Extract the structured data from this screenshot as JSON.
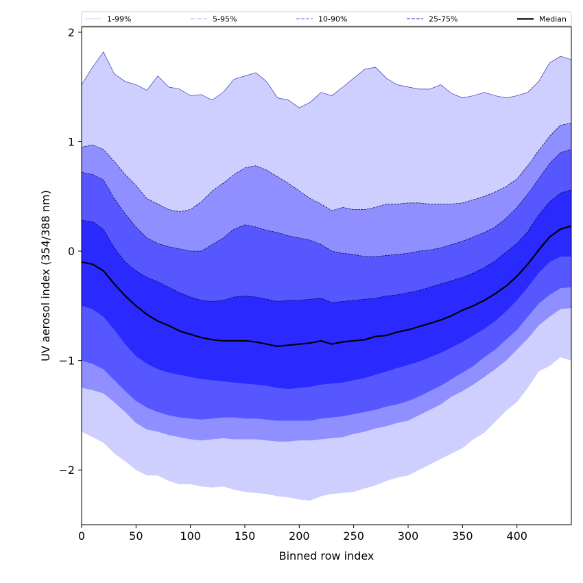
{
  "chart_data": {
    "type": "area",
    "xlabel": "Binned row index",
    "ylabel": "UV aerosol index (354/388 nm)",
    "xlim": [
      0,
      450
    ],
    "ylim": [
      -2.5,
      2.05
    ],
    "x_ticks": [
      0,
      50,
      100,
      150,
      200,
      250,
      300,
      350,
      400
    ],
    "x_tick_labels": [
      "0",
      "50",
      "100",
      "150",
      "200",
      "250",
      "300",
      "350",
      "400"
    ],
    "y_ticks": [
      -2,
      -1,
      0,
      1,
      2
    ],
    "y_tick_labels": [
      "−2",
      "−1",
      "0",
      "1",
      "2"
    ],
    "grid": false,
    "legend_position": "top",
    "x": [
      0,
      10,
      20,
      30,
      40,
      50,
      60,
      70,
      80,
      90,
      100,
      110,
      120,
      130,
      140,
      150,
      160,
      170,
      180,
      190,
      200,
      210,
      220,
      230,
      240,
      250,
      260,
      270,
      280,
      290,
      300,
      310,
      320,
      330,
      340,
      350,
      360,
      370,
      380,
      390,
      400,
      410,
      420,
      430,
      440,
      450
    ],
    "bands": [
      {
        "name": "1-99%",
        "color": "#cfcfff",
        "lower": [
          -1.65,
          -1.7,
          -1.75,
          -1.85,
          -1.92,
          -2.0,
          -2.05,
          -2.05,
          -2.1,
          -2.13,
          -2.13,
          -2.15,
          -2.16,
          -2.15,
          -2.18,
          -2.2,
          -2.21,
          -2.22,
          -2.24,
          -2.25,
          -2.27,
          -2.28,
          -2.24,
          -2.22,
          -2.21,
          -2.2,
          -2.17,
          -2.14,
          -2.1,
          -2.07,
          -2.05,
          -2.0,
          -1.95,
          -1.9,
          -1.85,
          -1.8,
          -1.72,
          -1.66,
          -1.56,
          -1.46,
          -1.38,
          -1.25,
          -1.1,
          -1.05,
          -0.97,
          -1.0
        ],
        "upper": [
          1.52,
          1.68,
          1.82,
          1.62,
          1.55,
          1.52,
          1.47,
          1.6,
          1.5,
          1.48,
          1.42,
          1.43,
          1.38,
          1.45,
          1.57,
          1.6,
          1.63,
          1.55,
          1.4,
          1.38,
          1.31,
          1.36,
          1.45,
          1.42,
          1.5,
          1.58,
          1.66,
          1.68,
          1.58,
          1.52,
          1.5,
          1.48,
          1.48,
          1.52,
          1.44,
          1.4,
          1.42,
          1.45,
          1.42,
          1.4,
          1.42,
          1.45,
          1.55,
          1.72,
          1.78,
          1.75
        ]
      },
      {
        "name": "5-95%",
        "color": "#8f8fff",
        "lower": [
          -1.25,
          -1.27,
          -1.3,
          -1.38,
          -1.47,
          -1.57,
          -1.63,
          -1.65,
          -1.68,
          -1.7,
          -1.72,
          -1.73,
          -1.72,
          -1.71,
          -1.72,
          -1.72,
          -1.72,
          -1.73,
          -1.74,
          -1.74,
          -1.73,
          -1.73,
          -1.72,
          -1.71,
          -1.7,
          -1.67,
          -1.65,
          -1.62,
          -1.6,
          -1.57,
          -1.55,
          -1.5,
          -1.45,
          -1.4,
          -1.33,
          -1.28,
          -1.22,
          -1.15,
          -1.08,
          -1.0,
          -0.9,
          -0.8,
          -0.68,
          -0.6,
          -0.53,
          -0.52
        ],
        "upper": [
          0.95,
          0.97,
          0.93,
          0.82,
          0.7,
          0.6,
          0.48,
          0.43,
          0.38,
          0.36,
          0.38,
          0.45,
          0.55,
          0.62,
          0.7,
          0.76,
          0.78,
          0.74,
          0.68,
          0.62,
          0.55,
          0.48,
          0.43,
          0.37,
          0.4,
          0.38,
          0.38,
          0.4,
          0.43,
          0.43,
          0.44,
          0.44,
          0.43,
          0.43,
          0.43,
          0.44,
          0.47,
          0.5,
          0.54,
          0.59,
          0.66,
          0.78,
          0.92,
          1.05,
          1.15,
          1.17
        ]
      },
      {
        "name": "10-90%",
        "color": "#5757ff",
        "lower": [
          -1.0,
          -1.03,
          -1.08,
          -1.18,
          -1.28,
          -1.37,
          -1.43,
          -1.47,
          -1.5,
          -1.52,
          -1.53,
          -1.54,
          -1.53,
          -1.52,
          -1.52,
          -1.53,
          -1.53,
          -1.54,
          -1.55,
          -1.55,
          -1.55,
          -1.55,
          -1.53,
          -1.52,
          -1.51,
          -1.49,
          -1.47,
          -1.45,
          -1.42,
          -1.4,
          -1.37,
          -1.33,
          -1.28,
          -1.23,
          -1.17,
          -1.11,
          -1.05,
          -0.97,
          -0.9,
          -0.81,
          -0.72,
          -0.6,
          -0.48,
          -0.4,
          -0.34,
          -0.33
        ],
        "upper": [
          0.72,
          0.7,
          0.65,
          0.48,
          0.34,
          0.22,
          0.12,
          0.07,
          0.04,
          0.02,
          0.0,
          0.0,
          0.06,
          0.12,
          0.2,
          0.24,
          0.22,
          0.19,
          0.17,
          0.14,
          0.12,
          0.1,
          0.06,
          0.0,
          -0.02,
          -0.03,
          -0.05,
          -0.05,
          -0.04,
          -0.03,
          -0.02,
          0.0,
          0.01,
          0.03,
          0.06,
          0.09,
          0.13,
          0.17,
          0.22,
          0.3,
          0.4,
          0.52,
          0.66,
          0.8,
          0.9,
          0.93
        ]
      },
      {
        "name": "25-75%",
        "color": "#2a2aff",
        "lower": [
          -0.5,
          -0.53,
          -0.6,
          -0.72,
          -0.85,
          -0.96,
          -1.03,
          -1.08,
          -1.11,
          -1.13,
          -1.15,
          -1.17,
          -1.18,
          -1.19,
          -1.2,
          -1.21,
          -1.22,
          -1.23,
          -1.25,
          -1.26,
          -1.25,
          -1.24,
          -1.22,
          -1.21,
          -1.2,
          -1.18,
          -1.16,
          -1.13,
          -1.1,
          -1.07,
          -1.04,
          -1.01,
          -0.97,
          -0.93,
          -0.88,
          -0.83,
          -0.77,
          -0.71,
          -0.64,
          -0.55,
          -0.45,
          -0.33,
          -0.2,
          -0.1,
          -0.05,
          -0.05
        ],
        "upper": [
          0.28,
          0.27,
          0.2,
          0.03,
          -0.1,
          -0.18,
          -0.24,
          -0.28,
          -0.33,
          -0.38,
          -0.42,
          -0.45,
          -0.46,
          -0.45,
          -0.42,
          -0.41,
          -0.42,
          -0.44,
          -0.46,
          -0.45,
          -0.45,
          -0.44,
          -0.43,
          -0.47,
          -0.46,
          -0.45,
          -0.44,
          -0.43,
          -0.41,
          -0.4,
          -0.38,
          -0.36,
          -0.33,
          -0.3,
          -0.27,
          -0.24,
          -0.2,
          -0.15,
          -0.09,
          -0.01,
          0.07,
          0.18,
          0.33,
          0.45,
          0.53,
          0.56
        ]
      }
    ],
    "median": {
      "name": "Median",
      "color": "#000000",
      "values": [
        -0.1,
        -0.12,
        -0.18,
        -0.3,
        -0.41,
        -0.5,
        -0.58,
        -0.64,
        -0.68,
        -0.73,
        -0.76,
        -0.79,
        -0.81,
        -0.82,
        -0.82,
        -0.82,
        -0.83,
        -0.85,
        -0.87,
        -0.86,
        -0.85,
        -0.84,
        -0.82,
        -0.85,
        -0.83,
        -0.82,
        -0.81,
        -0.78,
        -0.77,
        -0.74,
        -0.72,
        -0.69,
        -0.66,
        -0.63,
        -0.59,
        -0.54,
        -0.5,
        -0.45,
        -0.39,
        -0.32,
        -0.23,
        -0.12,
        0.01,
        0.13,
        0.2,
        0.23
      ]
    },
    "legend": [
      {
        "label": "1-99%",
        "color": "#d4d4ff",
        "style": "solid"
      },
      {
        "label": "5-95%",
        "color": "#a0a0ff",
        "style": "dashdot"
      },
      {
        "label": "10-90%",
        "color": "#7272ff",
        "style": "dashed"
      },
      {
        "label": "25-75%",
        "color": "#3a3aff",
        "style": "dashed"
      },
      {
        "label": "Median",
        "color": "#000000",
        "style": "solid"
      }
    ]
  }
}
